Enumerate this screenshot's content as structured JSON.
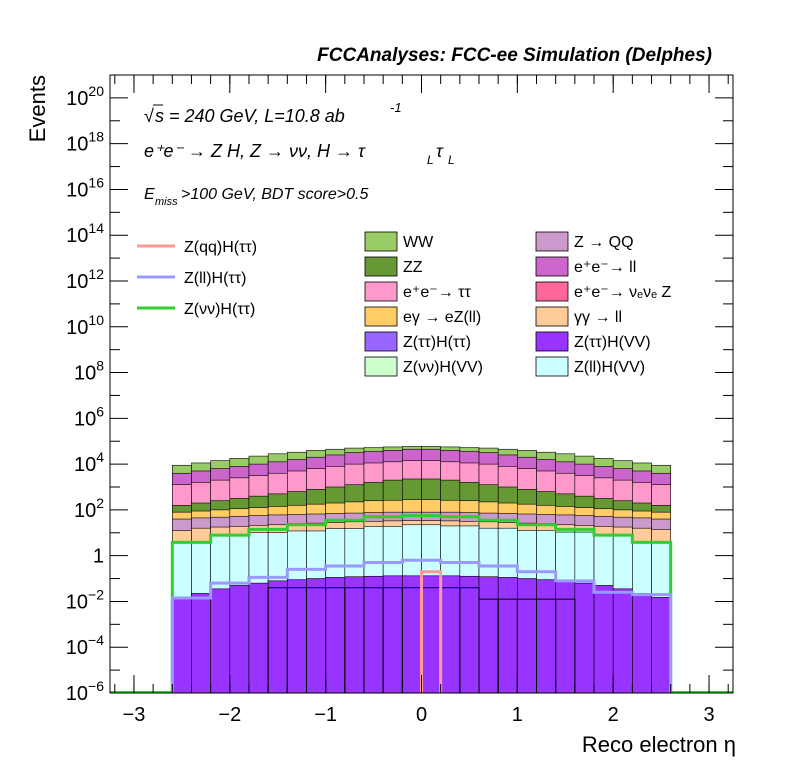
{
  "header": {
    "title": "FCCAnalyses: FCC-ee Simulation (Delphes)"
  },
  "annotations": {
    "sqrt_sym": "√",
    "energy": "s = 240 GeV, L=10.8 ab",
    "energy_sup": "-1",
    "process": "e⁺e⁻ → Z H, Z  → νν, H → τ",
    "process_sub1": "L",
    "process_tau2": "τ",
    "process_sub2": "L",
    "cut_e": "E",
    "cut_sub": "miss",
    "cut_rest": ">100 GeV, BDT score>0.5"
  },
  "chart_data": {
    "type": "histogram",
    "title": "FCCAnalyses: FCC-ee Simulation (Delphes)",
    "xlabel": "Reco electron η",
    "ylabel": "Events",
    "xlim": [
      -3.25,
      3.25
    ],
    "ylim_log10": [
      -6,
      21
    ],
    "y_scale": "log",
    "grid": false,
    "x_ticks": [
      {
        "v": -3,
        "label": "−3"
      },
      {
        "v": -2,
        "label": "−2"
      },
      {
        "v": -1,
        "label": "−1"
      },
      {
        "v": 0,
        "label": "0"
      },
      {
        "v": 1,
        "label": "1"
      },
      {
        "v": 2,
        "label": "2"
      },
      {
        "v": 3,
        "label": "3"
      }
    ],
    "y_ticks": [
      {
        "p": -6,
        "base": "10",
        "exp": "−6"
      },
      {
        "p": -4,
        "base": "10",
        "exp": "−4"
      },
      {
        "p": -2,
        "base": "10",
        "exp": "−2"
      },
      {
        "p": 0,
        "base": "1",
        "exp": ""
      },
      {
        "p": 2,
        "base": "10",
        "exp": "2"
      },
      {
        "p": 4,
        "base": "10",
        "exp": "4"
      },
      {
        "p": 6,
        "base": "10",
        "exp": "6"
      },
      {
        "p": 8,
        "base": "10",
        "exp": "8"
      },
      {
        "p": 10,
        "base": "10",
        "exp": "10"
      },
      {
        "p": 12,
        "base": "10",
        "exp": "12"
      },
      {
        "p": 14,
        "base": "10",
        "exp": "14"
      },
      {
        "p": 16,
        "base": "10",
        "exp": "16"
      },
      {
        "p": 18,
        "base": "10",
        "exp": "18"
      },
      {
        "p": 20,
        "base": "10",
        "exp": "20"
      }
    ],
    "bins": {
      "xmin": -2.6,
      "xmax": 2.6,
      "n": 26
    },
    "stack_log10_top": [
      {
        "name": "Z(ll)H(VV)",
        "color": "#ccffff",
        "values": [
          0.58,
          0.58,
          0.85,
          0.85,
          1.01,
          1.01,
          1.08,
          1.08,
          1.18,
          1.18,
          1.28,
          1.28,
          1.35,
          1.35,
          1.3,
          1.3,
          1.2,
          1.2,
          1.1,
          1.1,
          1.03,
          1.03,
          0.9,
          0.9,
          0.6,
          0.6
        ]
      },
      {
        "name": "γγ → ll",
        "color": "#ffcc99",
        "values": [
          1.1,
          1.2,
          1.25,
          1.28,
          1.32,
          1.35,
          1.4,
          1.42,
          1.45,
          1.48,
          1.5,
          1.52,
          1.53,
          1.53,
          1.52,
          1.5,
          1.48,
          1.45,
          1.42,
          1.4,
          1.35,
          1.32,
          1.28,
          1.25,
          1.2,
          1.15
        ]
      },
      {
        "name": "Z → QQ",
        "color": "#cc99cc",
        "values": [
          1.6,
          1.65,
          1.68,
          1.72,
          1.75,
          1.78,
          1.8,
          1.82,
          1.84,
          1.86,
          1.88,
          1.9,
          1.9,
          1.9,
          1.9,
          1.88,
          1.86,
          1.84,
          1.82,
          1.8,
          1.78,
          1.75,
          1.72,
          1.68,
          1.65,
          1.6
        ]
      },
      {
        "name": "eγ → eZ(ll)",
        "color": "#ffcc66",
        "values": [
          1.9,
          1.95,
          2.0,
          2.05,
          2.1,
          2.15,
          2.2,
          2.25,
          2.3,
          2.35,
          2.4,
          2.42,
          2.45,
          2.45,
          2.42,
          2.4,
          2.35,
          2.3,
          2.25,
          2.2,
          2.15,
          2.1,
          2.05,
          2.0,
          1.95,
          1.9
        ]
      },
      {
        "name": "ZZ",
        "color": "#669933",
        "values": [
          2.2,
          2.3,
          2.4,
          2.5,
          2.6,
          2.7,
          2.8,
          2.9,
          3.0,
          3.1,
          3.2,
          3.3,
          3.35,
          3.35,
          3.3,
          3.2,
          3.1,
          3.0,
          2.9,
          2.8,
          2.7,
          2.6,
          2.5,
          2.4,
          2.3,
          2.2
        ]
      },
      {
        "name": "e⁺e⁻ → ττ",
        "color": "#ff99cc",
        "values": [
          3.1,
          3.2,
          3.3,
          3.4,
          3.5,
          3.6,
          3.7,
          3.8,
          3.9,
          4.0,
          4.05,
          4.1,
          4.15,
          4.15,
          4.1,
          4.05,
          4.0,
          3.9,
          3.8,
          3.7,
          3.6,
          3.5,
          3.4,
          3.3,
          3.2,
          3.1
        ]
      },
      {
        "name": "e⁺e⁻ → ll",
        "color": "#cc66cc",
        "values": [
          3.6,
          3.7,
          3.8,
          3.9,
          4.0,
          4.1,
          4.2,
          4.3,
          4.4,
          4.5,
          4.55,
          4.6,
          4.65,
          4.65,
          4.6,
          4.55,
          4.5,
          4.4,
          4.3,
          4.2,
          4.1,
          4.0,
          3.9,
          3.8,
          3.7,
          3.6
        ]
      },
      {
        "name": "WW",
        "color": "#99cc66",
        "values": [
          3.95,
          4.05,
          4.15,
          4.25,
          4.35,
          4.45,
          4.52,
          4.6,
          4.65,
          4.7,
          4.72,
          4.75,
          4.77,
          4.77,
          4.75,
          4.72,
          4.7,
          4.65,
          4.6,
          4.52,
          4.45,
          4.35,
          4.25,
          4.15,
          4.05,
          3.95
        ]
      }
    ],
    "overlay_bins": [
      {
        "name": "Z(ττ)H(VV)",
        "color": "#9933ff",
        "values": [
          -1.82,
          -1.65,
          -1.45,
          -1.3,
          -1.2,
          -1.1,
          -1.05,
          -1.0,
          -0.95,
          -0.92,
          -0.9,
          -0.88,
          -0.88,
          -0.88,
          -0.88,
          -0.9,
          -0.92,
          -0.95,
          -1.0,
          -1.05,
          -1.1,
          -1.2,
          -1.3,
          -1.45,
          -1.65,
          -1.82
        ]
      }
    ],
    "outline_bins": [
      {
        "name": "Z(ττ)H(ττ)",
        "values": [
          null,
          null,
          null,
          null,
          null,
          -1.4,
          -1.4,
          -1.4,
          -1.4,
          -1.4,
          -1.4,
          -1.4,
          -1.4,
          -1.4,
          -1.4,
          -1.4,
          -1.9,
          -1.9,
          -1.9,
          -1.9,
          -1.9,
          null,
          null,
          null,
          null,
          null
        ]
      }
    ],
    "line_series": [
      {
        "name": "Z(νν)H(ττ)",
        "color": "#33cc33",
        "values": [
          0.58,
          0.58,
          0.9,
          0.9,
          1.15,
          1.15,
          1.35,
          1.35,
          1.55,
          1.55,
          1.7,
          1.7,
          1.75,
          1.75,
          1.7,
          1.7,
          1.55,
          1.55,
          1.35,
          1.35,
          1.15,
          1.15,
          0.9,
          0.9,
          0.58,
          0.58
        ]
      },
      {
        "name": "Z(ll)H(ττ)",
        "color": "#9999ff",
        "values": [
          -1.85,
          -1.85,
          -1.2,
          -1.2,
          -0.95,
          -0.95,
          -0.6,
          -0.6,
          -0.45,
          -0.45,
          -0.3,
          -0.3,
          -0.2,
          -0.2,
          -0.3,
          -0.3,
          -0.45,
          -0.45,
          -0.7,
          -0.7,
          -1.1,
          -1.1,
          -1.6,
          -1.6,
          -1.7,
          -1.7
        ]
      },
      {
        "name": "Z(qq)H(ττ)",
        "color": "#ff9999",
        "values": [
          null,
          null,
          null,
          null,
          null,
          null,
          null,
          null,
          null,
          null,
          null,
          null,
          null,
          -0.7,
          null,
          null,
          null,
          null,
          null,
          null,
          null,
          null,
          null,
          null,
          null,
          null
        ]
      }
    ],
    "legend_left": [
      {
        "name": "Z(qq)H(ττ)",
        "color": "#ff9999"
      },
      {
        "name": "Z(ll)H(ττ)",
        "color": "#9999ff"
      },
      {
        "name": "Z(νν)H(ττ)",
        "color": "#33cc33"
      }
    ],
    "legend_right": [
      {
        "name": "WW",
        "color": "#99cc66"
      },
      {
        "name": "Z → QQ",
        "color": "#cc99cc"
      },
      {
        "name": "ZZ",
        "color": "#669933"
      },
      {
        "name": "e⁺e⁻→ ll",
        "color": "#cc66cc"
      },
      {
        "name": "e⁺e⁻→ ττ",
        "color": "#ff99cc"
      },
      {
        "name": "e⁺e⁻→ νₑνₑ Z",
        "color": "#ff6699"
      },
      {
        "name": "eγ → eZ(ll)",
        "color": "#ffcc66"
      },
      {
        "name": "γγ → ll",
        "color": "#ffcc99"
      },
      {
        "name": "Z(ττ)H(ττ)",
        "color": "#9966ff"
      },
      {
        "name": "Z(ττ)H(VV)",
        "color": "#9933ff"
      },
      {
        "name": "Z(νν)H(VV)",
        "color": "#ccffcc"
      },
      {
        "name": "Z(ll)H(VV)",
        "color": "#ccffff"
      }
    ]
  }
}
